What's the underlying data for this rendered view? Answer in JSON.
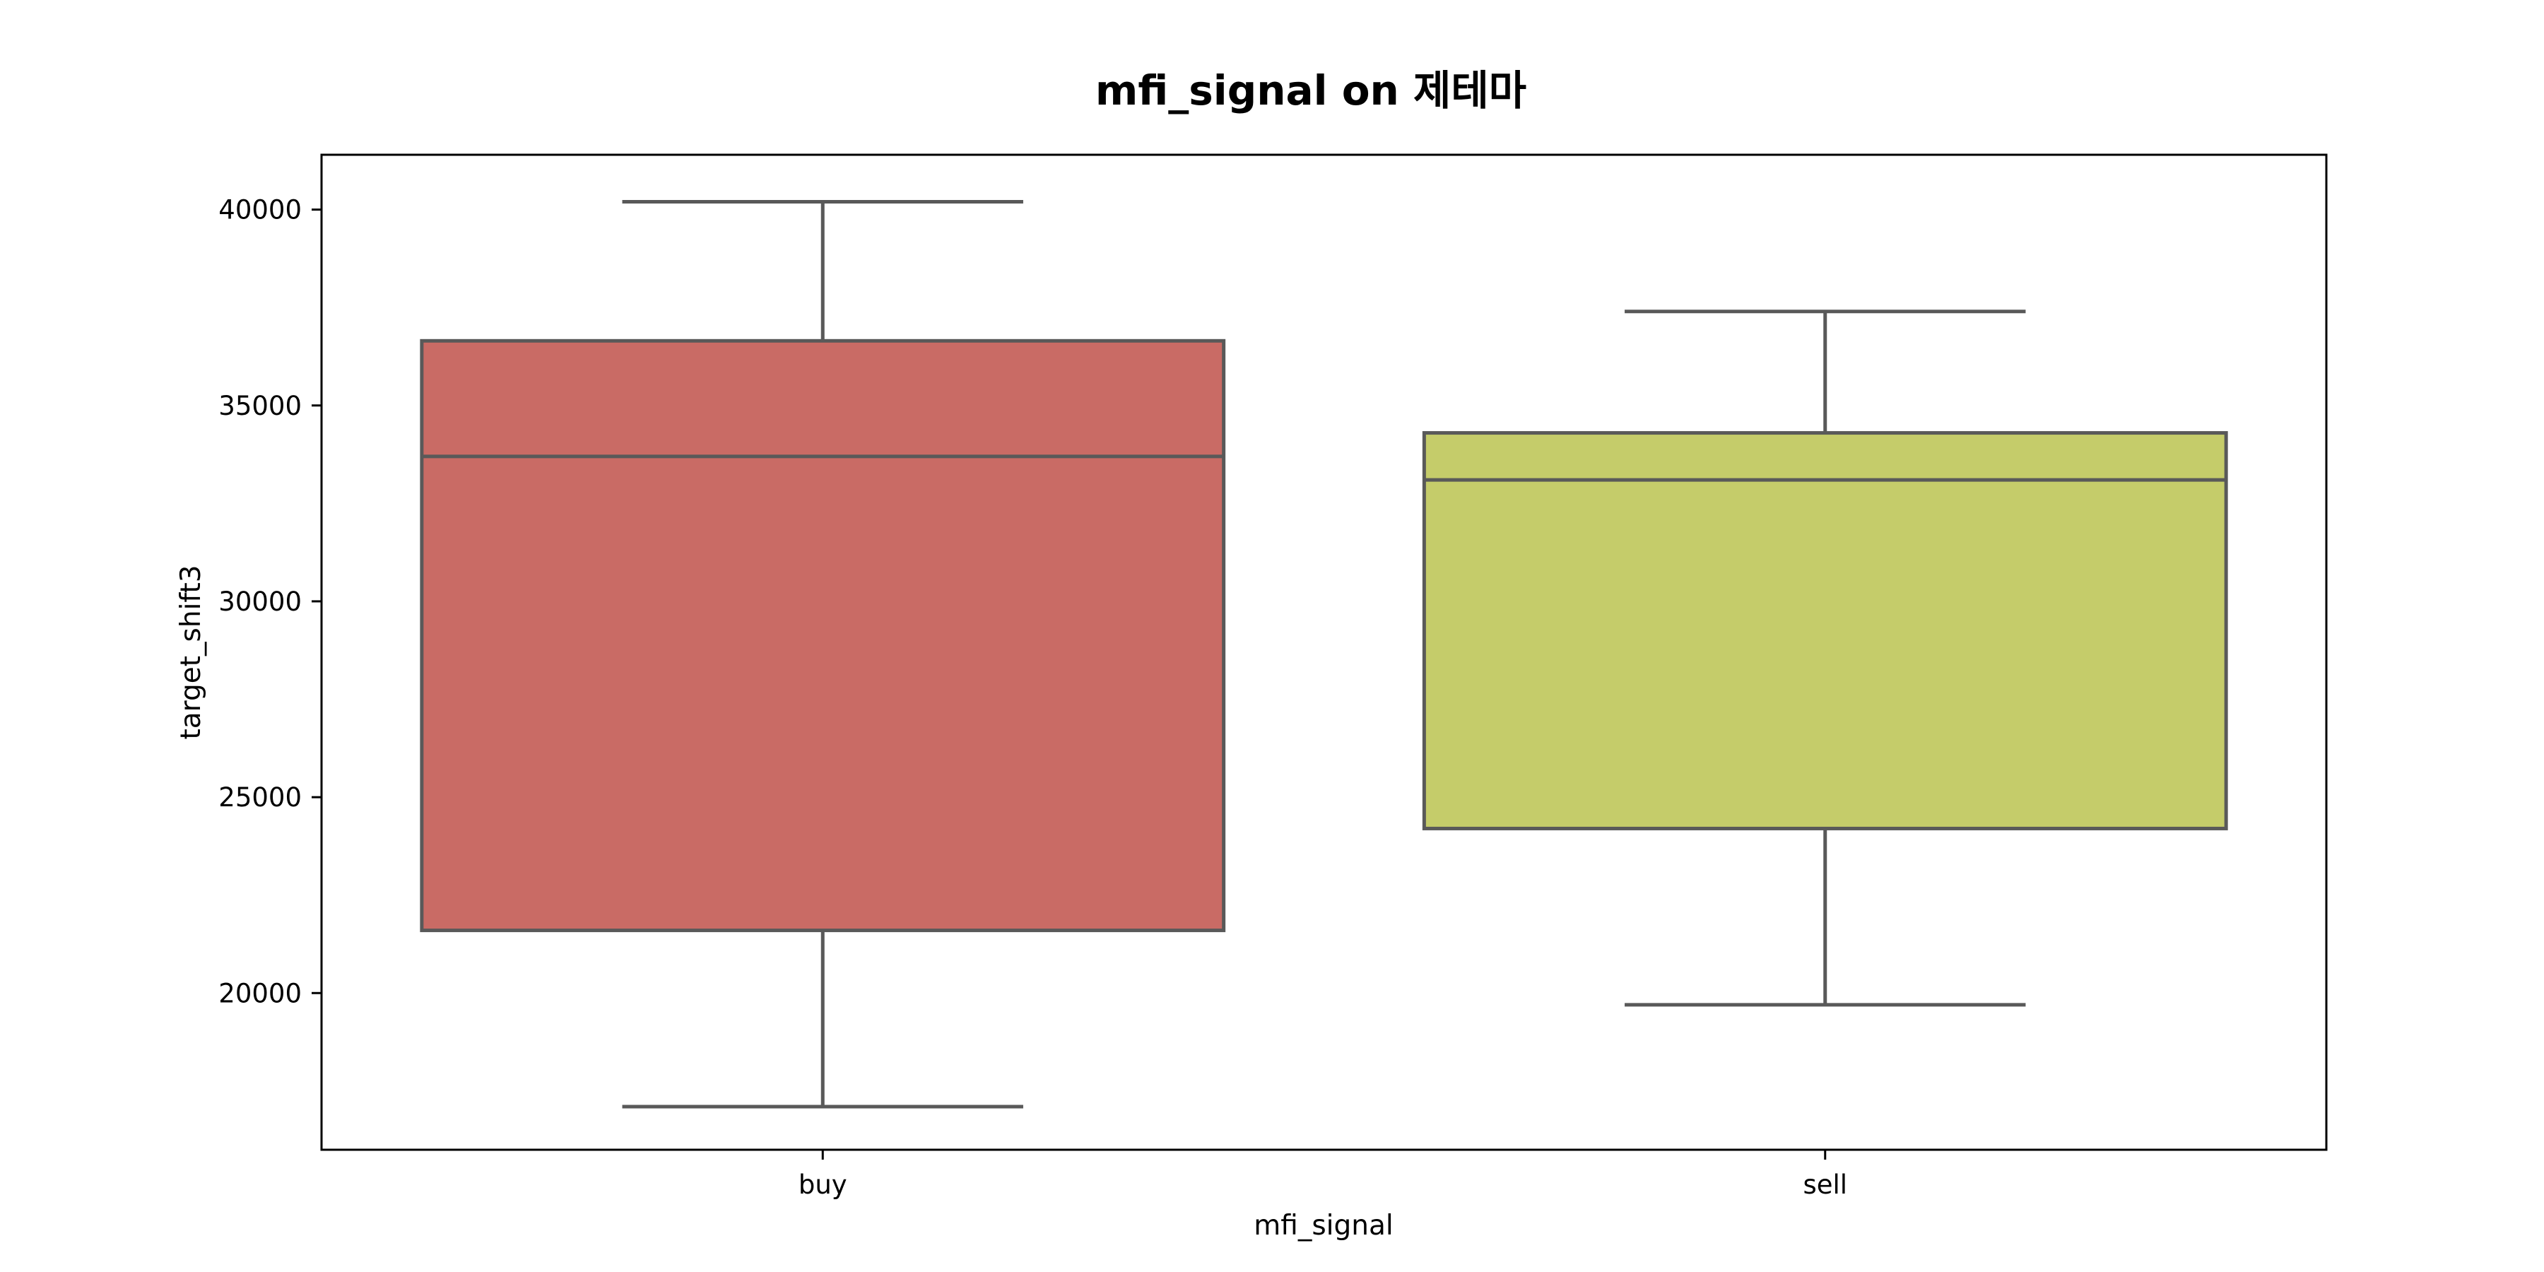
{
  "chart_data": {
    "type": "box",
    "title": "mfi_signal on 제테마",
    "xlabel": "mfi_signal",
    "ylabel": "target_shift3",
    "ylim": [
      16000,
      41400
    ],
    "yticks": [
      20000,
      25000,
      30000,
      35000,
      40000
    ],
    "yticks_labels": [
      "20000",
      "25000",
      "30000",
      "35000",
      "40000"
    ],
    "grid": false,
    "categories": [
      "buy",
      "sell"
    ],
    "boxes": [
      {
        "category": "buy",
        "whisker_low": 17100,
        "q1": 21600,
        "median": 33700,
        "q3": 36650,
        "whisker_high": 40200,
        "color": "#c96b65"
      },
      {
        "category": "sell",
        "whisker_low": 19700,
        "q1": 24200,
        "median": 33100,
        "q3": 34300,
        "whisker_high": 37400,
        "color": "#c5cc6a"
      }
    ],
    "line_color": "#595959"
  }
}
